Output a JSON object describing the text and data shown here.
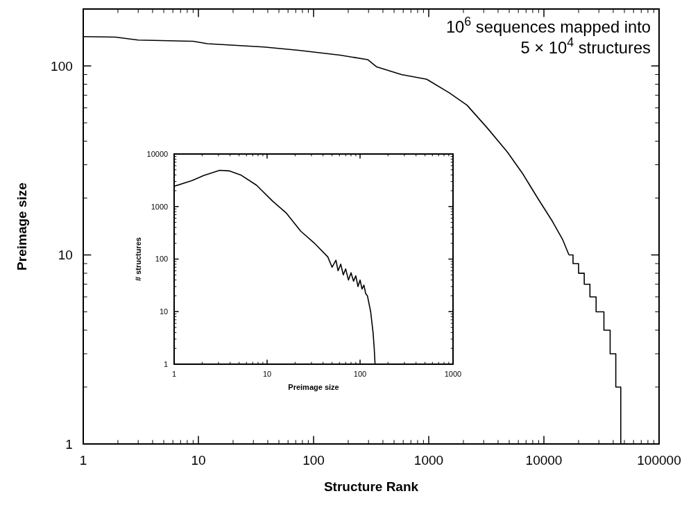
{
  "chart_data": [
    {
      "type": "line",
      "xlabel": "Structure Rank",
      "ylabel": "Preimage size",
      "log": "xy",
      "xlim": [
        1,
        100000
      ],
      "ylim": [
        1,
        200
      ],
      "xticks": [
        1,
        10,
        100,
        1000,
        10000,
        100000
      ],
      "yticks": [
        1,
        10,
        100
      ],
      "annotations": [
        "10$^{6}$ sequences mapped into",
        "5 × 10$^{4}$ structures"
      ],
      "series": [
        {
          "color": "#000000",
          "x": [
            1,
            1.9,
            3,
            9,
            12,
            37,
            74,
            170,
            295,
            351,
            580,
            960,
            1510,
            2150,
            3220,
            4820,
            6520,
            8820,
            11900,
            14600,
            16500
          ],
          "values": [
            143,
            142,
            137,
            135,
            131,
            126,
            121,
            114,
            108,
            99,
            90,
            85,
            72,
            62,
            47,
            35,
            27,
            20,
            15,
            12,
            10
          ]
        },
        {
          "type": "step",
          "color": "#000000",
          "x": [
            16500,
            17900,
            20000,
            22400,
            25100,
            28400,
            33200,
            37600,
            42100,
            46500
          ],
          "values": [
            10,
            9,
            8,
            7,
            6,
            5,
            4,
            3,
            2,
            1
          ]
        }
      ]
    },
    {
      "type": "line",
      "xlabel": "Preimage size",
      "ylabel": "# structures",
      "log": "xy",
      "xlim": [
        1,
        1000
      ],
      "ylim": [
        1,
        10000
      ],
      "xticks": [
        1,
        10,
        100,
        1000
      ],
      "yticks": [
        1,
        10,
        100,
        1000,
        10000
      ],
      "series": [
        {
          "color": "#000000",
          "x": [
            1,
            1.56,
            2.08,
            3.1,
            3.9,
            5.2,
            7.7,
            11.5,
            16,
            23,
            32,
            45,
            50,
            55,
            58,
            62,
            66,
            70,
            75,
            80,
            85,
            90,
            95,
            100,
            105,
            110,
            115,
            120,
            130,
            138,
            142,
            145
          ],
          "values": [
            2430,
            3120,
            3890,
            4900,
            4770,
            4000,
            2550,
            1260,
            760,
            340,
            204,
            110,
            70,
            95,
            60,
            80,
            50,
            65,
            40,
            55,
            38,
            48,
            30,
            40,
            27,
            32,
            22,
            20,
            10,
            4,
            2,
            1
          ]
        }
      ]
    }
  ]
}
